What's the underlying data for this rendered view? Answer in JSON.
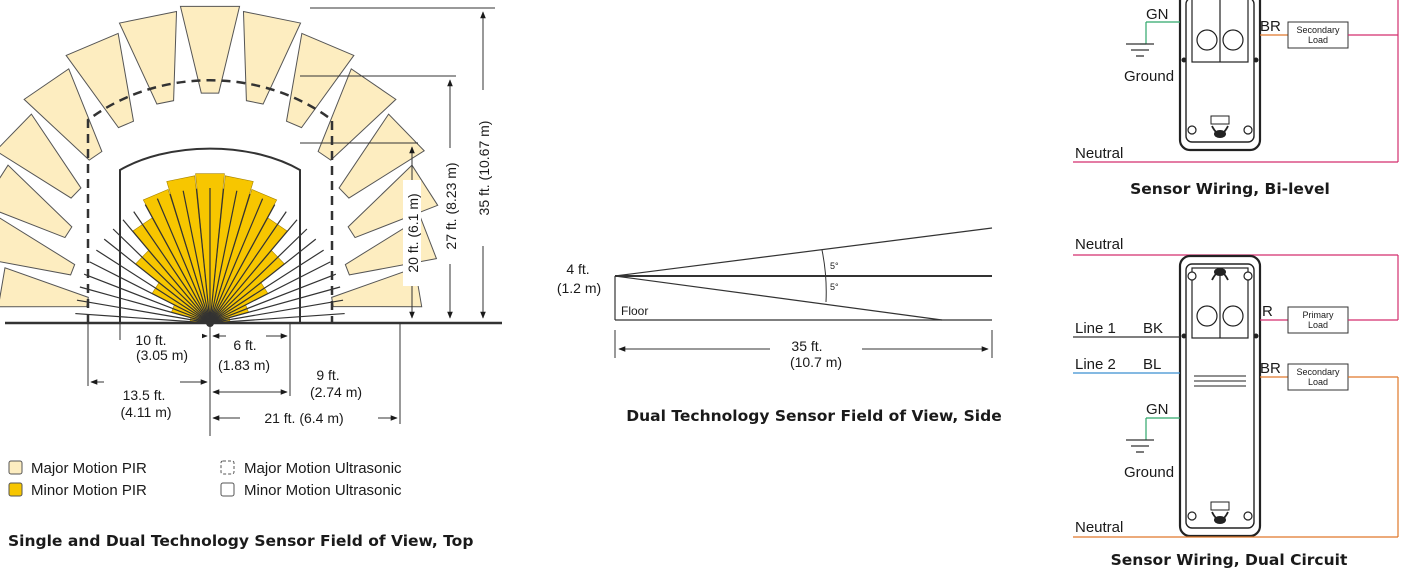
{
  "top_view": {
    "dims": {
      "d35": "35 ft. (10.67 m)",
      "d27": "27 ft. (8.23 m)",
      "d20": "20 ft. (6.1 m)",
      "d10_ft": "10 ft.",
      "d10_m": "(3.05 m)",
      "d6_ft": "6 ft.",
      "d6_m": "(1.83 m)",
      "d9_ft": "9 ft.",
      "d9_m": "(2.74 m)",
      "d13_ft": "13.5 ft.",
      "d13_m": "(4.11 m)",
      "d21": "21 ft. (6.4 m)"
    },
    "legend": [
      {
        "label": "Major Motion PIR",
        "color": "#fdedc0",
        "style": "solid"
      },
      {
        "label": "Major Motion Ultrasonic",
        "color": "#ffffff",
        "style": "dashed"
      },
      {
        "label": "Minor Motion PIR",
        "color": "#f7c600",
        "style": "solid"
      },
      {
        "label": "Minor Motion Ultrasonic",
        "color": "#ffffff",
        "style": "solid"
      }
    ],
    "caption": "Single and Dual Technology Sensor Field of View, Top"
  },
  "side_view": {
    "height_ft": "4 ft.",
    "height_m": "(1.2 m)",
    "angle_top": "5°",
    "angle_bottom": "5°",
    "floor": "Floor",
    "dist_ft": "35 ft.",
    "dist_m": "(10.7 m)",
    "caption": "Dual Technology Sensor Field of View, Side"
  },
  "wiring_bilevel": {
    "gn": "GN",
    "br": "BR",
    "secondary_load": [
      "Secondary",
      "Load"
    ],
    "ground": "Ground",
    "neutral": "Neutral",
    "caption": "Sensor Wiring, Bi-level"
  },
  "wiring_dual": {
    "neutral_top": "Neutral",
    "line1": "Line 1",
    "bk": "BK",
    "line2": "Line 2",
    "bl": "BL",
    "r": "R",
    "br": "BR",
    "primary_load": [
      "Primary",
      "Load"
    ],
    "secondary_load": [
      "Secondary",
      "Load"
    ],
    "gn": "GN",
    "ground": "Ground",
    "neutral_bottom": "Neutral",
    "caption": "Sensor Wiring, Dual Circuit"
  },
  "colors": {
    "major_pir": "#fdedc0",
    "minor_pir": "#f7c600",
    "outline": "#333333",
    "wire_red": "#d32f6e",
    "wire_orange": "#e0782a",
    "wire_green": "#2fa66a",
    "wire_blue": "#3a8fd0"
  }
}
